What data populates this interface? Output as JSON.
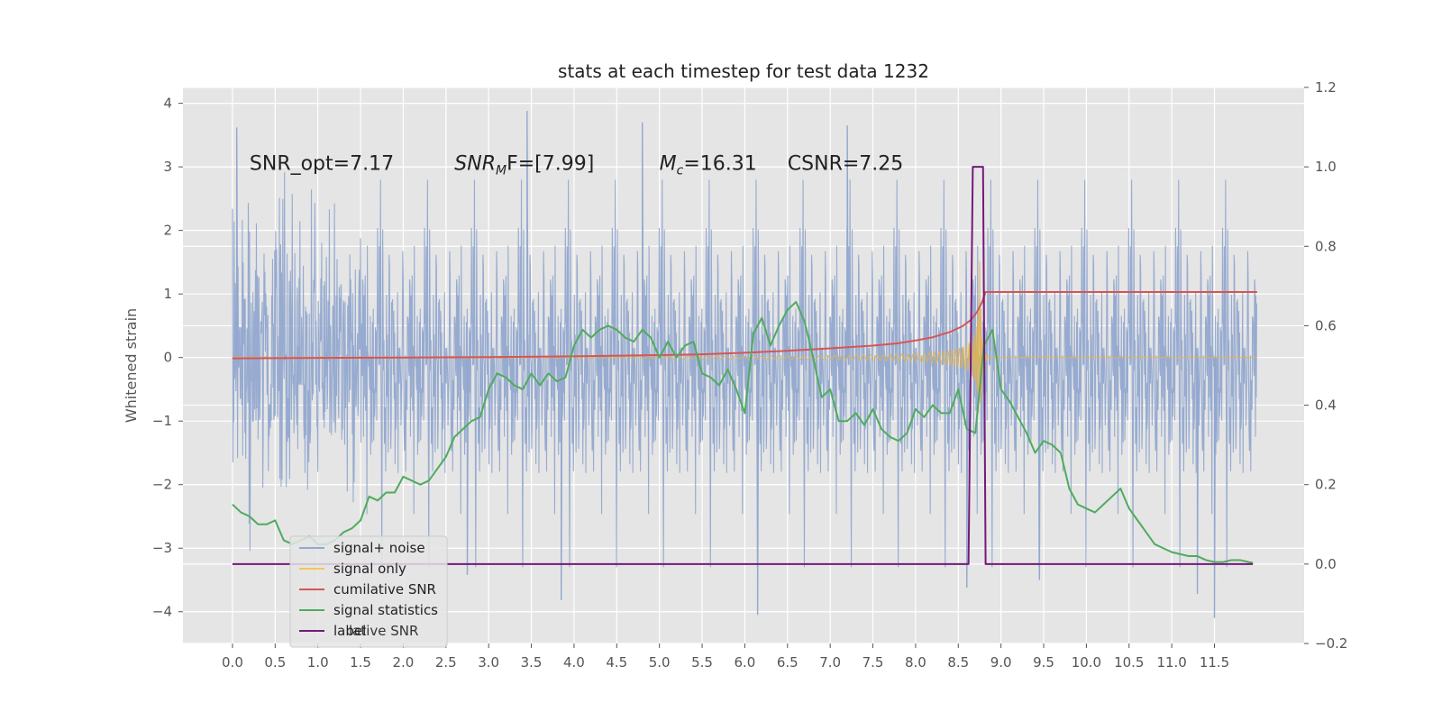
{
  "chart_data": {
    "type": "line",
    "title": "stats at each timestep for test data 1232",
    "ylabel": "Whitened strain",
    "xlabel": "",
    "xlim": [
      -0.58,
      12.55
    ],
    "ylim": [
      -4.5,
      4.25
    ],
    "y2lim": [
      -0.2,
      1.2
    ],
    "grid": true,
    "legend_placement": "lower-left",
    "x_ticks": [
      "0.0",
      "0.5",
      "1.0",
      "1.5",
      "2.0",
      "2.5",
      "3.0",
      "3.5",
      "4.0",
      "4.5",
      "5.0",
      "5.5",
      "6.0",
      "6.5",
      "7.0",
      "7.5",
      "8.0",
      "8.5",
      "9.0",
      "9.5",
      "10.0",
      "10.5",
      "11.0",
      "11.5"
    ],
    "y_ticks": [
      "4",
      "3",
      "2",
      "1",
      "0",
      "−1",
      "−2",
      "−3",
      "−4"
    ],
    "y2_ticks": [
      "1.2",
      "1.0",
      "0.8",
      "0.6",
      "0.4",
      "0.2",
      "0.0",
      "−0.2"
    ],
    "annotations": [
      {
        "text": "SNR_opt=7.17",
        "x": 0.2,
        "y": 3.05
      },
      {
        "prefix": "SNR",
        "sub": "M",
        "suffix": "F=[7.99]",
        "x": 2.6,
        "y": 3.05
      },
      {
        "prefix": "M",
        "sub": "c",
        "suffix": "=16.31",
        "x": 5.0,
        "y": 3.05
      },
      {
        "text": "CSNR=7.25",
        "x": 6.5,
        "y": 3.05
      }
    ],
    "series": [
      {
        "name": "signal+ noise",
        "color": "#92a8cf",
        "axis": "left",
        "style": "noise",
        "x_start": 0.0,
        "x_end": 11.995,
        "sigma": 1.05,
        "peaks": [
          {
            "x": 0.05,
            "y": 3.62
          },
          {
            "x": 3.45,
            "y": 3.88
          },
          {
            "x": 6.15,
            "y": -4.05
          },
          {
            "x": 3.85,
            "y": -3.82
          },
          {
            "x": 4.8,
            "y": 3.7
          },
          {
            "x": 11.5,
            "y": -4.1
          },
          {
            "x": 11.3,
            "y": -3.72
          },
          {
            "x": 8.6,
            "y": -3.62
          },
          {
            "x": 7.2,
            "y": 3.65
          },
          {
            "x": 2.75,
            "y": -3.42
          },
          {
            "x": 9.45,
            "y": -3.5
          }
        ]
      },
      {
        "name": "signal only",
        "color": "#e0b252",
        "axis": "left",
        "style": "chirp",
        "t_merger": 8.75,
        "peak_amplitude": 1.65
      },
      {
        "name": "cumilative SNR",
        "color": "#d65555",
        "axis": "right",
        "x": [
          0.0,
          1.0,
          2.0,
          3.0,
          4.0,
          5.0,
          5.5,
          6.0,
          6.5,
          7.0,
          7.5,
          7.8,
          8.0,
          8.2,
          8.4,
          8.55,
          8.65,
          8.72,
          8.78,
          8.82,
          12.0
        ],
        "y": [
          0.518,
          0.519,
          0.52,
          0.521,
          0.523,
          0.526,
          0.528,
          0.532,
          0.537,
          0.543,
          0.55,
          0.556,
          0.563,
          0.571,
          0.584,
          0.599,
          0.615,
          0.635,
          0.66,
          0.685,
          0.685
        ]
      },
      {
        "name": "signal statistics",
        "color": "#4fab5e",
        "axis": "right",
        "x": [
          0.0,
          0.1,
          0.2,
          0.3,
          0.4,
          0.5,
          0.6,
          0.7,
          0.8,
          0.9,
          1.0,
          1.1,
          1.2,
          1.3,
          1.4,
          1.5,
          1.6,
          1.7,
          1.8,
          1.9,
          2.0,
          2.1,
          2.2,
          2.3,
          2.4,
          2.5,
          2.6,
          2.7,
          2.8,
          2.9,
          3.0,
          3.1,
          3.2,
          3.3,
          3.4,
          3.5,
          3.6,
          3.7,
          3.8,
          3.9,
          4.0,
          4.1,
          4.2,
          4.3,
          4.4,
          4.5,
          4.6,
          4.7,
          4.8,
          4.9,
          5.0,
          5.1,
          5.2,
          5.3,
          5.4,
          5.5,
          5.6,
          5.7,
          5.8,
          5.9,
          6.0,
          6.1,
          6.2,
          6.3,
          6.4,
          6.5,
          6.6,
          6.7,
          6.8,
          6.9,
          7.0,
          7.1,
          7.2,
          7.3,
          7.4,
          7.5,
          7.6,
          7.7,
          7.8,
          7.9,
          8.0,
          8.1,
          8.2,
          8.3,
          8.4,
          8.5,
          8.6,
          8.7,
          8.8,
          8.9,
          9.0,
          9.1,
          9.2,
          9.3,
          9.4,
          9.5,
          9.6,
          9.7,
          9.8,
          9.9,
          10.0,
          10.1,
          10.2,
          10.3,
          10.4,
          10.5,
          10.6,
          10.7,
          10.8,
          10.9,
          11.0,
          11.1,
          11.2,
          11.3,
          11.4,
          11.5,
          11.6,
          11.7,
          11.8,
          11.9,
          11.95
        ],
        "y": [
          0.15,
          0.13,
          0.12,
          0.1,
          0.1,
          0.11,
          0.06,
          0.05,
          0.06,
          0.07,
          0.05,
          0.05,
          0.06,
          0.08,
          0.09,
          0.11,
          0.17,
          0.16,
          0.18,
          0.18,
          0.22,
          0.21,
          0.2,
          0.21,
          0.24,
          0.27,
          0.32,
          0.34,
          0.36,
          0.37,
          0.44,
          0.48,
          0.47,
          0.45,
          0.44,
          0.48,
          0.45,
          0.48,
          0.46,
          0.47,
          0.55,
          0.59,
          0.57,
          0.59,
          0.6,
          0.59,
          0.57,
          0.56,
          0.59,
          0.57,
          0.52,
          0.56,
          0.52,
          0.55,
          0.56,
          0.48,
          0.47,
          0.45,
          0.49,
          0.44,
          0.38,
          0.58,
          0.62,
          0.55,
          0.6,
          0.64,
          0.66,
          0.61,
          0.52,
          0.42,
          0.44,
          0.36,
          0.36,
          0.38,
          0.35,
          0.39,
          0.34,
          0.32,
          0.31,
          0.33,
          0.39,
          0.37,
          0.4,
          0.38,
          0.38,
          0.44,
          0.34,
          0.33,
          0.55,
          0.59,
          0.44,
          0.41,
          0.37,
          0.33,
          0.28,
          0.31,
          0.3,
          0.28,
          0.19,
          0.15,
          0.14,
          0.13,
          0.15,
          0.17,
          0.19,
          0.14,
          0.11,
          0.08,
          0.05,
          0.04,
          0.03,
          0.025,
          0.02,
          0.02,
          0.01,
          0.005,
          0.005,
          0.01,
          0.01,
          0.005,
          0.003
        ]
      },
      {
        "name": "label",
        "color": "#75197a",
        "axis": "right",
        "x": [
          0.0,
          8.62,
          8.67,
          8.7,
          8.75,
          8.79,
          8.82,
          11.95
        ],
        "y": [
          0.0,
          0.0,
          1.0,
          1.0,
          1.0,
          1.0,
          0.0,
          0.0
        ]
      }
    ],
    "legend": [
      {
        "label": "signal+ noise",
        "color": "#92a8cf"
      },
      {
        "label": "signal only",
        "color": "#f3c656"
      },
      {
        "label": "cumilative SNR",
        "color": "#d65555"
      },
      {
        "label": "signal statistics",
        "color": "#4fab5e"
      },
      {
        "label": "label",
        "color": "#75197a"
      }
    ],
    "legend_ghost_text": "lative SNR"
  }
}
